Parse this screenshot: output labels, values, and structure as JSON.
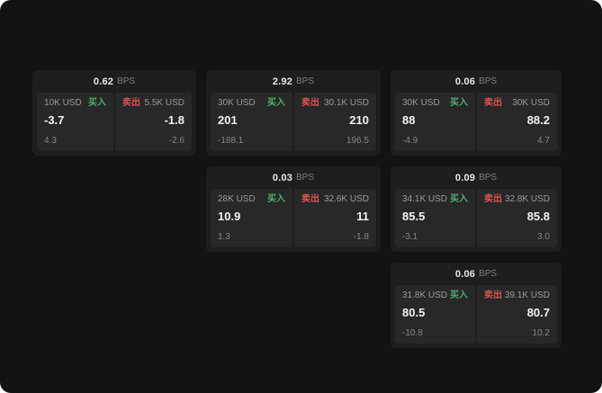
{
  "page": {
    "background": "#131313",
    "card_background": "#1e1e1e",
    "panel_background": "#282828"
  },
  "colors": {
    "buy": "#4db06b",
    "sell": "#d9544f"
  },
  "labels": {
    "bps": "BPS",
    "buy": "买入",
    "sell": "卖出"
  },
  "cards": [
    {
      "bps": "0.62",
      "buy": {
        "amount": "10K USD",
        "price": "-3.7",
        "sub": "4.3"
      },
      "sell": {
        "amount": "5.5K USD",
        "price": "-1.8",
        "sub": "-2.6"
      }
    },
    {
      "bps": "2.92",
      "buy": {
        "amount": "30K USD",
        "price": "201",
        "sub": "-188.1"
      },
      "sell": {
        "amount": "30.1K USD",
        "price": "210",
        "sub": "196.5"
      }
    },
    {
      "bps": "0.06",
      "buy": {
        "amount": "30K USD",
        "price": "88",
        "sub": "-4.9"
      },
      "sell": {
        "amount": "30K USD",
        "price": "88.2",
        "sub": "4.7"
      }
    },
    {
      "bps": "0.03",
      "buy": {
        "amount": "28K USD",
        "price": "10.9",
        "sub": "1.3"
      },
      "sell": {
        "amount": "32.6K USD",
        "price": "11",
        "sub": "-1.8"
      }
    },
    {
      "bps": "0.09",
      "buy": {
        "amount": "34.1K USD",
        "price": "85.5",
        "sub": "-3.1"
      },
      "sell": {
        "amount": "32.8K USD",
        "price": "85.8",
        "sub": "3.0"
      }
    },
    {
      "bps": "0.06",
      "buy": {
        "amount": "31.8K USD",
        "price": "80.5",
        "sub": "-10.8"
      },
      "sell": {
        "amount": "39.1K USD",
        "price": "80.7",
        "sub": "10.2"
      }
    }
  ]
}
